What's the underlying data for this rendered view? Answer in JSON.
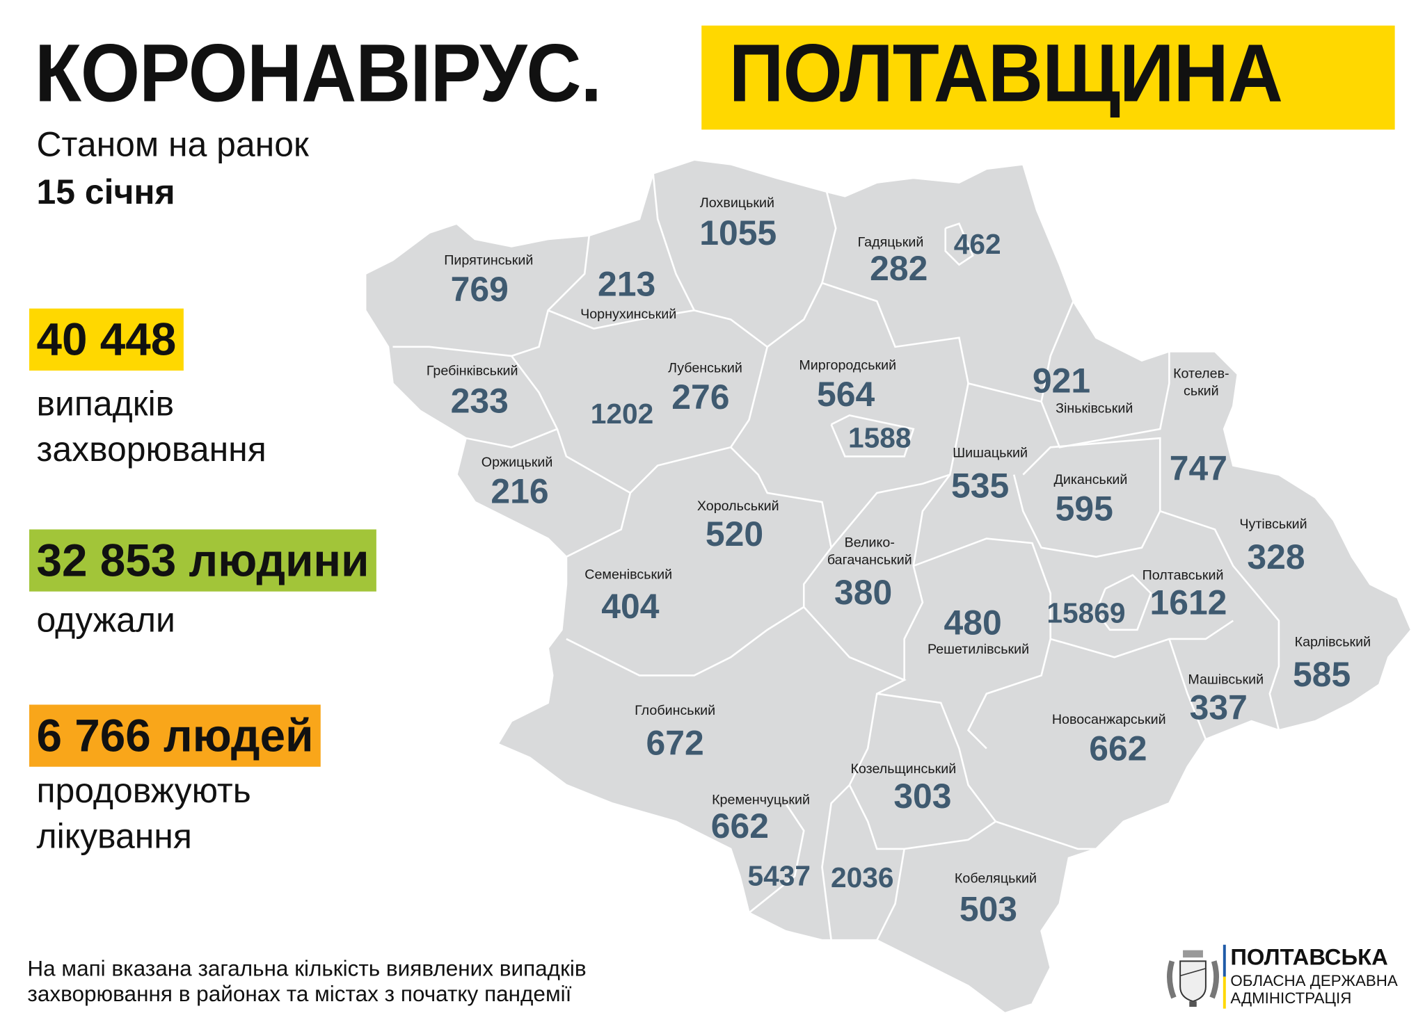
{
  "header": {
    "title_left": "КОРОНАВІРУС.",
    "title_right": "ПОЛТАВЩИНА",
    "date_line1": "Станом на ранок",
    "date_line2": "15 січня"
  },
  "stats": [
    {
      "value": "40 448",
      "line1": "випадків",
      "line2": "захворювання",
      "color": "#FFD800"
    },
    {
      "value": "32 853 людини",
      "line1": "одужали",
      "line2": "",
      "color": "#A2C539"
    },
    {
      "value": "6 766 людей",
      "line1": "продовжують",
      "line2": "лікування",
      "color": "#F9A61A"
    }
  ],
  "footnote": {
    "line1": "На мапі вказана загальна кількість виявлених випадків",
    "line2": "захворювання в районах та містах з початку пандемії"
  },
  "logo": {
    "line1": "ПОЛТАВСЬКА",
    "line2": "ОБЛАСНА ДЕРЖАВНА",
    "line3": "АДМІНІСТРАЦІЯ",
    "emblem_text": "ПОЛТАВЩИНА",
    "flag_colors": [
      "#1F5BA8",
      "#FFD800"
    ]
  },
  "map": {
    "fill": "#D9DADB",
    "border": "#FFFFFF",
    "number_color": "#3F5A70",
    "districts": [
      {
        "name": "Лохвицький",
        "value": "1055"
      },
      {
        "name": "Гадяцький",
        "value": "282"
      },
      {
        "name": "",
        "value": "462"
      },
      {
        "name": "Пирятинський",
        "value": "769"
      },
      {
        "name": "Чорнухинський",
        "value": "213"
      },
      {
        "name": "Гребінківський",
        "value": "233"
      },
      {
        "name": "Лубенський",
        "value": "276"
      },
      {
        "name": "",
        "value": "1202"
      },
      {
        "name": "Миргородський",
        "value": "564"
      },
      {
        "name": "",
        "value": "1588"
      },
      {
        "name": "Зіньківський",
        "value": "921"
      },
      {
        "name": "Котелев-|ський",
        "value": "747"
      },
      {
        "name": "Оржицький",
        "value": "216"
      },
      {
        "name": "Хорольський",
        "value": "520"
      },
      {
        "name": "Шишацький",
        "value": "535"
      },
      {
        "name": "Диканський",
        "value": "595"
      },
      {
        "name": "Чутівський",
        "value": "328"
      },
      {
        "name": "Семенівський",
        "value": "404"
      },
      {
        "name": "Велико-|багачанський",
        "value": "380"
      },
      {
        "name": "Полтавський",
        "value": "1612"
      },
      {
        "name": "",
        "value": "15869"
      },
      {
        "name": "Решетилівський",
        "value": "480"
      },
      {
        "name": "Карлівський",
        "value": "585"
      },
      {
        "name": "Машівський",
        "value": "337"
      },
      {
        "name": "Глобинський",
        "value": "672"
      },
      {
        "name": "Новосанжарський",
        "value": "662"
      },
      {
        "name": "Козельщинський",
        "value": "303"
      },
      {
        "name": "Кременчуцький",
        "value": "662"
      },
      {
        "name": "",
        "value": "5437"
      },
      {
        "name": "",
        "value": "2036"
      },
      {
        "name": "Кобеляцький",
        "value": "503"
      }
    ]
  }
}
